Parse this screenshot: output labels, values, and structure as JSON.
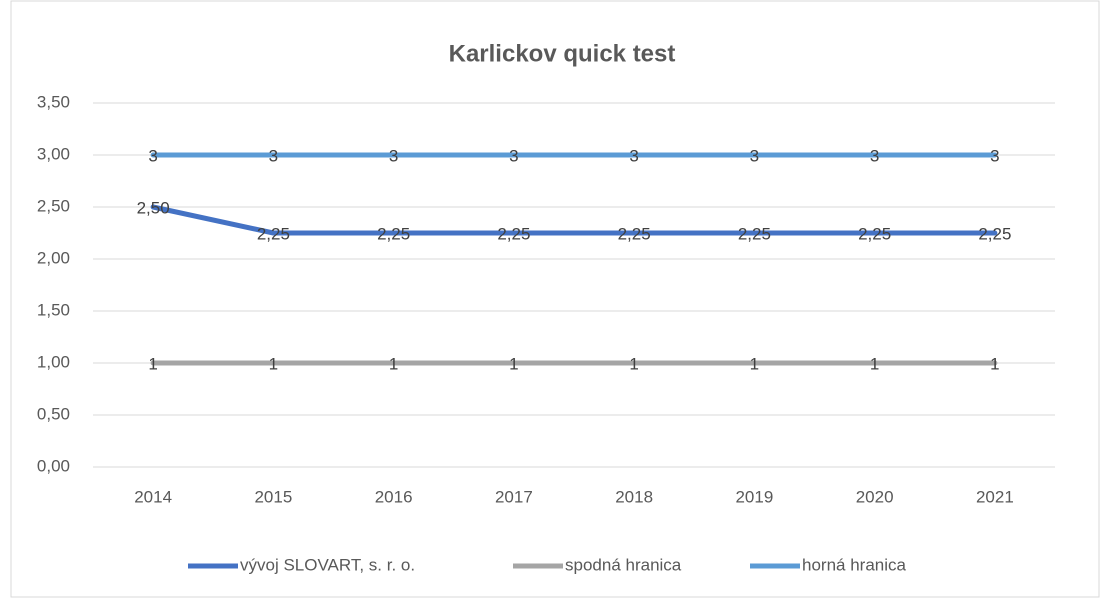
{
  "chart_data": {
    "type": "line",
    "title": "Karlickov quick test",
    "categories": [
      "2014",
      "2015",
      "2016",
      "2017",
      "2018",
      "2019",
      "2020",
      "2021"
    ],
    "series": [
      {
        "name": "vývoj SLOVART, s. r. o.",
        "color": "#4472c4",
        "values": [
          2.5,
          2.25,
          2.25,
          2.25,
          2.25,
          2.25,
          2.25,
          2.25
        ],
        "value_labels": [
          "2,50",
          "2,25",
          "2,25",
          "2,25",
          "2,25",
          "2,25",
          "2,25",
          "2,25"
        ]
      },
      {
        "name": "spodná hranica",
        "color": "#a5a5a5",
        "values": [
          1,
          1,
          1,
          1,
          1,
          1,
          1,
          1
        ]
      },
      {
        "name": "horná hranica",
        "color": "#5b9bd5",
        "values": [
          3,
          3,
          3,
          3,
          3,
          3,
          3,
          3
        ]
      }
    ],
    "ylim": [
      0,
      3.5
    ],
    "yticks": [
      {
        "value": 0,
        "label": "0,00"
      },
      {
        "value": 0.5,
        "label": "0,50"
      },
      {
        "value": 1,
        "label": "1,00"
      },
      {
        "value": 1.5,
        "label": "1,50"
      },
      {
        "value": 2,
        "label": "2,00"
      },
      {
        "value": 2.5,
        "label": "2,50"
      },
      {
        "value": 3,
        "label": "3,00"
      },
      {
        "value": 3.5,
        "label": "3,50"
      }
    ],
    "grid": true,
    "legend": "bottom"
  }
}
